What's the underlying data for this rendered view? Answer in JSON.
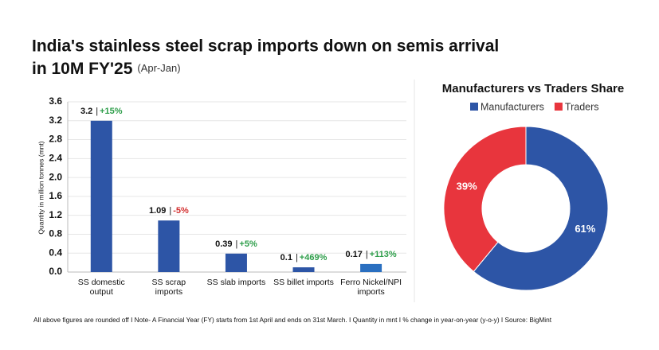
{
  "chart_data": [
    {
      "type": "bar",
      "title": [
        "India's stainless steel scrap imports down on semis arrival",
        "in 10M FY'25"
      ],
      "subtitle": "(Apr-Jan)",
      "y_label": "Quantity in million tonnes (mnt)",
      "categories": [
        "SS domestic output",
        "SS scrap imports",
        "SS slab imports",
        "SS billet imports",
        "Ferro Nickel/NPI imports"
      ],
      "values": [
        3.2,
        1.09,
        0.39,
        0.1,
        0.17
      ],
      "colors": [
        "#2d55a6",
        "#2d55a6",
        "#2d55a6",
        "#2d55a6",
        "#2a6fc0"
      ],
      "label_separator": "|",
      "changes": [
        15,
        -5,
        5,
        469,
        113
      ],
      "change_labels": [
        "+15%",
        "-5%",
        "+5%",
        "+469%",
        "+113%"
      ],
      "ylim": [
        0,
        3.6
      ],
      "yticks": [
        {
          "value": 0,
          "label": "0.0"
        },
        0.4,
        0.8,
        1.2,
        1.6,
        {
          "value": 2,
          "label": "2.0"
        },
        2.4,
        2.8,
        3.2,
        3.6
      ],
      "grid": true
    },
    {
      "type": "donut",
      "title": "Manufacturers vs Traders Share",
      "categories": [
        "Manufacturers",
        "Traders"
      ],
      "values": [
        61,
        39
      ],
      "value_labels": [
        "61%",
        "39%"
      ],
      "colors": [
        "#2d55a6",
        "#e8353d"
      ]
    }
  ],
  "note": "All above figures are rounded off  I  Note- A Financial Year (FY) starts from 1st April and ends on 31st March.  I  Quantity in mnt  I  % change in year-on-year (y-o-y)  I  Source: BigMint"
}
